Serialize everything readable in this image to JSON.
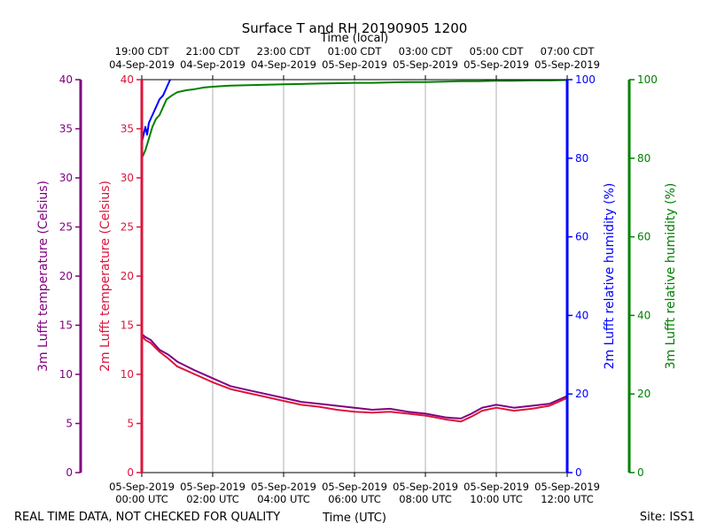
{
  "chart_data": {
    "type": "line",
    "title": "Surface T and RH 20190905 1200",
    "top_axis_label": "Time (local)",
    "xlabel": "Time (UTC)",
    "footer_left": "REAL TIME DATA, NOT CHECKED FOR QUALITY",
    "footer_right": "Site: ISS1",
    "x_range_hours": [
      0,
      12
    ],
    "bottom_ticks": [
      {
        "h": 0,
        "date": "05-Sep-2019",
        "time": "00:00 UTC"
      },
      {
        "h": 2,
        "date": "05-Sep-2019",
        "time": "02:00 UTC"
      },
      {
        "h": 4,
        "date": "05-Sep-2019",
        "time": "04:00 UTC"
      },
      {
        "h": 6,
        "date": "05-Sep-2019",
        "time": "06:00 UTC"
      },
      {
        "h": 8,
        "date": "05-Sep-2019",
        "time": "08:00 UTC"
      },
      {
        "h": 10,
        "date": "05-Sep-2019",
        "time": "10:00 UTC"
      },
      {
        "h": 12,
        "date": "05-Sep-2019",
        "time": "12:00 UTC"
      }
    ],
    "top_ticks": [
      {
        "h": 0,
        "time": "19:00 CDT",
        "date": "04-Sep-2019"
      },
      {
        "h": 2,
        "time": "21:00 CDT",
        "date": "04-Sep-2019"
      },
      {
        "h": 4,
        "time": "23:00 CDT",
        "date": "04-Sep-2019"
      },
      {
        "h": 6,
        "time": "01:00 CDT",
        "date": "05-Sep-2019"
      },
      {
        "h": 8,
        "time": "03:00 CDT",
        "date": "05-Sep-2019"
      },
      {
        "h": 10,
        "time": "05:00 CDT",
        "date": "05-Sep-2019"
      },
      {
        "h": 12,
        "time": "07:00 CDT",
        "date": "05-Sep-2019"
      }
    ],
    "axes": [
      {
        "id": "t3",
        "label": "3m Lufft temperature (Celsius)",
        "color": "#800080",
        "range": [
          0,
          40
        ],
        "ticks": [
          0,
          5,
          10,
          15,
          20,
          25,
          30,
          35,
          40
        ]
      },
      {
        "id": "t2",
        "label": "2m Lufft temperature (Celsius)",
        "color": "#dc143c",
        "range": [
          0,
          40
        ],
        "ticks": [
          0,
          5,
          10,
          15,
          20,
          25,
          30,
          35,
          40
        ]
      },
      {
        "id": "rh2",
        "label": "2m Lufft relative humidity (%)",
        "color": "#0000ff",
        "range": [
          0,
          100
        ],
        "ticks": [
          0,
          20,
          40,
          60,
          80,
          100
        ]
      },
      {
        "id": "rh3",
        "label": "3m Lufft relative humidity (%)",
        "color": "#008000",
        "range": [
          0,
          100
        ],
        "ticks": [
          0,
          20,
          40,
          60,
          80,
          100
        ]
      }
    ],
    "series": [
      {
        "axis": "t3",
        "color": "#800080",
        "x": [
          0,
          0.1,
          0.25,
          0.5,
          0.75,
          1,
          1.5,
          2,
          2.5,
          3,
          3.5,
          4,
          4.5,
          5,
          5.5,
          6,
          6.5,
          7,
          7.5,
          8,
          8.3,
          8.6,
          9,
          9.3,
          9.6,
          10,
          10.5,
          11,
          11.5,
          12
        ],
        "y": [
          14.1,
          13.8,
          13.5,
          12.5,
          12.0,
          11.3,
          10.4,
          9.6,
          8.8,
          8.4,
          8.0,
          7.6,
          7.2,
          7.0,
          6.8,
          6.6,
          6.4,
          6.5,
          6.2,
          6.0,
          5.8,
          5.6,
          5.5,
          6.0,
          6.6,
          6.9,
          6.6,
          6.8,
          7.0,
          7.8
        ]
      },
      {
        "axis": "t2",
        "color": "#dc143c",
        "x": [
          0,
          0.1,
          0.25,
          0.5,
          0.75,
          1,
          1.5,
          2,
          2.5,
          3,
          3.5,
          4,
          4.5,
          5,
          5.5,
          6,
          6.5,
          7,
          7.5,
          8,
          8.3,
          8.6,
          9,
          9.3,
          9.6,
          10,
          10.5,
          11,
          11.5,
          12
        ],
        "y": [
          13.9,
          13.5,
          13.2,
          12.3,
          11.6,
          10.8,
          10.0,
          9.2,
          8.5,
          8.1,
          7.7,
          7.3,
          6.9,
          6.7,
          6.4,
          6.2,
          6.1,
          6.2,
          6.0,
          5.8,
          5.6,
          5.4,
          5.2,
          5.7,
          6.3,
          6.6,
          6.3,
          6.5,
          6.8,
          7.6
        ]
      },
      {
        "axis": "rh2",
        "color": "#0000ff",
        "x": [
          0,
          0.05,
          0.1,
          0.15,
          0.2,
          0.3,
          0.4,
          0.5,
          0.6,
          0.7,
          0.8
        ],
        "y": [
          84,
          86,
          88,
          86,
          89,
          91,
          93,
          95,
          96,
          98,
          100
        ]
      },
      {
        "axis": "rh3",
        "color": "#008000",
        "x": [
          0,
          0.1,
          0.2,
          0.3,
          0.4,
          0.5,
          0.6,
          0.7,
          0.85,
          1,
          1.25,
          1.5,
          1.75,
          2,
          2.5,
          3,
          3.5,
          4,
          4.5,
          5,
          5.5,
          6,
          6.5,
          7,
          7.5,
          8,
          8.5,
          9,
          9.5,
          10,
          10.5,
          11,
          11.5,
          12
        ],
        "y": [
          80,
          82,
          85,
          88,
          90,
          91,
          93,
          95,
          96,
          96.8,
          97.3,
          97.6,
          98,
          98.2,
          98.5,
          98.6,
          98.7,
          98.8,
          98.9,
          99,
          99.1,
          99.2,
          99.2,
          99.3,
          99.4,
          99.4,
          99.5,
          99.6,
          99.6,
          99.7,
          99.7,
          99.8,
          99.8,
          99.9
        ]
      }
    ]
  }
}
